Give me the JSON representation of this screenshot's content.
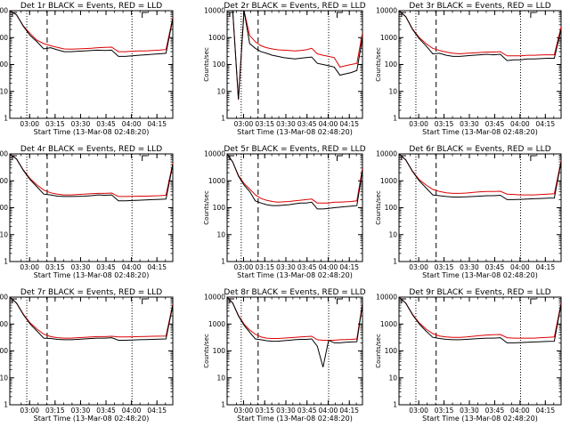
{
  "figure": {
    "x_axis_label": "Start Time (13-Mar-08 02:48:20)"
  },
  "chart_data": [
    {
      "type": "line",
      "title": "Det 1r BLACK = Events, RED = LLD",
      "xlabel": "Start Time (13-Mar-08 02:48:20)",
      "ylabel": "Counts/sec",
      "xtick_labels": [
        "03:00",
        "03:15",
        "03:30",
        "03:45",
        "04:00",
        "04:15"
      ],
      "ytick_labels": [
        "1",
        "10",
        "100",
        "1000",
        "10000"
      ],
      "y_scale": "log",
      "ylim": [
        1,
        10000
      ],
      "grid": false,
      "colors": {
        "events": "#000000",
        "lld": "#dd0000"
      },
      "x_minutes": [
        0,
        4,
        8,
        12,
        16,
        20,
        24,
        28,
        32,
        36,
        40,
        44,
        48,
        52,
        56,
        60,
        64,
        68,
        72,
        76,
        80,
        84,
        88,
        92,
        96
      ],
      "vlines_dotted": [
        10,
        72
      ],
      "vline_dashed": 22,
      "series": [
        {
          "name": "BLACK = Events",
          "color": "#000000",
          "values": [
            10000,
            7000,
            2600,
            1200,
            700,
            380,
            420,
            350,
            300,
            300,
            310,
            320,
            330,
            340,
            330,
            340,
            200,
            200,
            210,
            220,
            230,
            240,
            250,
            260,
            5000
          ]
        },
        {
          "name": "RED = LLD",
          "color": "#dd0000",
          "values": [
            10000,
            7000,
            2700,
            1400,
            800,
            600,
            500,
            430,
            380,
            370,
            380,
            390,
            400,
            420,
            430,
            440,
            300,
            300,
            310,
            320,
            320,
            330,
            340,
            360,
            5500
          ]
        }
      ]
    },
    {
      "type": "line",
      "title": "Det 2r BLACK = Events, RED = LLD",
      "xlabel": "Start Time (13-Mar-08 02:48:20)",
      "ylabel": "Counts/sec",
      "xtick_labels": [
        "03:00",
        "03:15",
        "03:30",
        "03:45",
        "04:00",
        "04:15"
      ],
      "ytick_labels": [
        "1",
        "10",
        "100",
        "1000",
        "10000"
      ],
      "y_scale": "log",
      "ylim": [
        1,
        10000
      ],
      "grid": false,
      "colors": {
        "events": "#000000",
        "lld": "#dd0000"
      },
      "x_minutes": [
        0,
        4,
        8,
        12,
        16,
        20,
        24,
        28,
        32,
        36,
        40,
        44,
        48,
        52,
        56,
        60,
        64,
        68,
        72,
        76,
        80,
        84,
        88,
        92,
        96
      ],
      "vlines_dotted": [
        10,
        72
      ],
      "vline_dashed": 22,
      "series": [
        {
          "name": "BLACK = Events",
          "color": "#000000",
          "values": [
            10000,
            10000,
            5,
            10000,
            600,
            400,
            300,
            260,
            220,
            200,
            180,
            170,
            160,
            170,
            180,
            190,
            110,
            100,
            90,
            80,
            40,
            45,
            50,
            60,
            1000
          ]
        },
        {
          "name": "RED = LLD",
          "color": "#dd0000",
          "values": [
            10000,
            10000,
            5,
            10000,
            1200,
            700,
            500,
            420,
            380,
            350,
            340,
            330,
            320,
            330,
            350,
            400,
            250,
            220,
            200,
            180,
            80,
            90,
            100,
            110,
            1500
          ]
        }
      ]
    },
    {
      "type": "line",
      "title": "Det 3r BLACK = Events, RED = LLD",
      "xlabel": "Start Time (13-Mar-08 02:48:20)",
      "ylabel": "Counts/sec",
      "xtick_labels": [
        "03:00",
        "03:15",
        "03:30",
        "03:45",
        "04:00",
        "04:15"
      ],
      "ytick_labels": [
        "1",
        "10",
        "100",
        "1000",
        "10000"
      ],
      "y_scale": "log",
      "ylim": [
        1,
        10000
      ],
      "grid": false,
      "colors": {
        "events": "#000000",
        "lld": "#dd0000"
      },
      "x_minutes": [
        0,
        4,
        8,
        12,
        16,
        20,
        24,
        28,
        32,
        36,
        40,
        44,
        48,
        52,
        56,
        60,
        64,
        68,
        72,
        76,
        80,
        84,
        88,
        92,
        96
      ],
      "vlines_dotted": [
        10,
        72
      ],
      "vline_dashed": 22,
      "series": [
        {
          "name": "BLACK = Events",
          "color": "#000000",
          "values": [
            10000,
            6000,
            2000,
            900,
            500,
            250,
            260,
            220,
            200,
            200,
            210,
            220,
            230,
            240,
            230,
            240,
            140,
            150,
            150,
            160,
            160,
            165,
            170,
            170,
            2000
          ]
        },
        {
          "name": "RED = LLD",
          "color": "#dd0000",
          "values": [
            10000,
            6000,
            2100,
            1000,
            600,
            400,
            330,
            290,
            260,
            250,
            260,
            270,
            280,
            290,
            290,
            300,
            210,
            210,
            210,
            220,
            220,
            225,
            230,
            230,
            2500
          ]
        }
      ]
    },
    {
      "type": "line",
      "title": "Det 4r BLACK = Events, RED = LLD",
      "xlabel": "Start Time (13-Mar-08 02:48:20)",
      "ylabel": "Counts/sec",
      "xtick_labels": [
        "03:00",
        "03:15",
        "03:30",
        "03:45",
        "04:00",
        "04:15"
      ],
      "ytick_labels": [
        "1",
        "10",
        "100",
        "1000",
        "10000"
      ],
      "y_scale": "log",
      "ylim": [
        1,
        10000
      ],
      "grid": false,
      "colors": {
        "events": "#000000",
        "lld": "#dd0000"
      },
      "x_minutes": [
        0,
        4,
        8,
        12,
        16,
        20,
        24,
        28,
        32,
        36,
        40,
        44,
        48,
        52,
        56,
        60,
        64,
        68,
        72,
        76,
        80,
        84,
        88,
        92,
        96
      ],
      "vlines_dotted": [
        10,
        72
      ],
      "vline_dashed": 22,
      "series": [
        {
          "name": "BLACK = Events",
          "color": "#000000",
          "values": [
            10000,
            6500,
            2400,
            1100,
            600,
            320,
            300,
            270,
            260,
            260,
            265,
            270,
            280,
            300,
            290,
            300,
            180,
            180,
            185,
            190,
            195,
            200,
            205,
            210,
            4000
          ]
        },
        {
          "name": "RED = LLD",
          "color": "#dd0000",
          "values": [
            10000,
            6500,
            2500,
            1200,
            700,
            450,
            360,
            320,
            300,
            300,
            310,
            320,
            330,
            340,
            340,
            350,
            260,
            260,
            265,
            270,
            270,
            275,
            280,
            290,
            4500
          ]
        }
      ]
    },
    {
      "type": "line",
      "title": "Det 5r BLACK = Events, RED = LLD",
      "xlabel": "Start Time (13-Mar-08 02:48:20)",
      "ylabel": "Counts/sec",
      "xtick_labels": [
        "03:00",
        "03:15",
        "03:30",
        "03:45",
        "04:00",
        "04:15"
      ],
      "ytick_labels": [
        "1",
        "10",
        "100",
        "1000",
        "10000"
      ],
      "y_scale": "log",
      "ylim": [
        1,
        10000
      ],
      "grid": false,
      "colors": {
        "events": "#000000",
        "lld": "#dd0000"
      },
      "x_minutes": [
        0,
        4,
        8,
        12,
        16,
        20,
        24,
        28,
        32,
        36,
        40,
        44,
        48,
        52,
        56,
        60,
        64,
        68,
        72,
        76,
        80,
        84,
        88,
        92,
        96
      ],
      "vlines_dotted": [
        10,
        72
      ],
      "vline_dashed": 22,
      "series": [
        {
          "name": "BLACK = Events",
          "color": "#000000",
          "values": [
            10000,
            5000,
            1500,
            700,
            400,
            180,
            150,
            130,
            120,
            120,
            125,
            130,
            140,
            150,
            150,
            160,
            90,
            90,
            95,
            100,
            105,
            110,
            115,
            120,
            2500
          ]
        },
        {
          "name": "RED = LLD",
          "color": "#dd0000",
          "values": [
            10000,
            5000,
            1600,
            800,
            500,
            300,
            220,
            190,
            170,
            160,
            165,
            170,
            180,
            190,
            200,
            210,
            150,
            150,
            150,
            160,
            160,
            165,
            170,
            180,
            3000
          ]
        }
      ]
    },
    {
      "type": "line",
      "title": "Det 6r BLACK = Events, RED = LLD",
      "xlabel": "Start Time (13-Mar-08 02:48:20)",
      "ylabel": "Counts/sec",
      "xtick_labels": [
        "03:00",
        "03:15",
        "03:30",
        "03:45",
        "04:00",
        "04:15"
      ],
      "ytick_labels": [
        "1",
        "10",
        "100",
        "1000",
        "10000"
      ],
      "y_scale": "log",
      "ylim": [
        1,
        10000
      ],
      "grid": false,
      "colors": {
        "events": "#000000",
        "lld": "#dd0000"
      },
      "x_minutes": [
        0,
        4,
        8,
        12,
        16,
        20,
        24,
        28,
        32,
        36,
        40,
        44,
        48,
        52,
        56,
        60,
        64,
        68,
        72,
        76,
        80,
        84,
        88,
        92,
        96
      ],
      "vlines_dotted": [
        10,
        72
      ],
      "vline_dashed": 22,
      "series": [
        {
          "name": "BLACK = Events",
          "color": "#000000",
          "values": [
            10000,
            6000,
            2200,
            1000,
            550,
            300,
            280,
            260,
            250,
            250,
            255,
            260,
            270,
            280,
            280,
            290,
            200,
            200,
            205,
            210,
            215,
            220,
            225,
            230,
            5000
          ]
        },
        {
          "name": "RED = LLD",
          "color": "#dd0000",
          "values": [
            10000,
            6000,
            2300,
            1100,
            700,
            480,
            400,
            360,
            340,
            340,
            350,
            370,
            390,
            400,
            400,
            410,
            320,
            310,
            300,
            300,
            300,
            310,
            320,
            330,
            5500
          ]
        }
      ]
    },
    {
      "type": "line",
      "title": "Det 7r BLACK = Events, RED = LLD",
      "xlabel": "Start Time (13-Mar-08 02:48:20)",
      "ylabel": "Counts/sec",
      "xtick_labels": [
        "03:00",
        "03:15",
        "03:30",
        "03:45",
        "04:00",
        "04:15"
      ],
      "ytick_labels": [
        "1",
        "10",
        "100",
        "1000",
        "10000"
      ],
      "y_scale": "log",
      "ylim": [
        1,
        10000
      ],
      "grid": false,
      "colors": {
        "events": "#000000",
        "lld": "#dd0000"
      },
      "x_minutes": [
        0,
        4,
        8,
        12,
        16,
        20,
        24,
        28,
        32,
        36,
        40,
        44,
        48,
        52,
        56,
        60,
        64,
        68,
        72,
        76,
        80,
        84,
        88,
        92,
        96
      ],
      "vlines_dotted": [
        10,
        72
      ],
      "vline_dashed": 22,
      "series": [
        {
          "name": "BLACK = Events",
          "color": "#000000",
          "values": [
            10000,
            6000,
            2200,
            1000,
            550,
            300,
            290,
            270,
            260,
            260,
            270,
            280,
            290,
            300,
            300,
            310,
            250,
            250,
            255,
            260,
            265,
            270,
            275,
            280,
            5000
          ]
        },
        {
          "name": "RED = LLD",
          "color": "#dd0000",
          "values": [
            10000,
            6000,
            2300,
            1100,
            650,
            420,
            340,
            310,
            300,
            300,
            310,
            320,
            330,
            340,
            340,
            350,
            330,
            330,
            335,
            340,
            345,
            350,
            355,
            360,
            5500
          ]
        }
      ]
    },
    {
      "type": "line",
      "title": "Det 8r BLACK = Events, RED = LLD",
      "xlabel": "Start Time (13-Mar-08 02:48:20)",
      "ylabel": "Counts/sec",
      "xtick_labels": [
        "03:00",
        "03:15",
        "03:30",
        "03:45",
        "04:00",
        "04:15"
      ],
      "ytick_labels": [
        "1",
        "10",
        "100",
        "1000",
        "10000"
      ],
      "y_scale": "log",
      "ylim": [
        1,
        10000
      ],
      "grid": false,
      "colors": {
        "events": "#000000",
        "lld": "#dd0000"
      },
      "x_minutes": [
        0,
        4,
        8,
        12,
        16,
        20,
        24,
        28,
        32,
        36,
        40,
        44,
        48,
        52,
        56,
        60,
        64,
        68,
        72,
        76,
        80,
        84,
        88,
        92,
        96
      ],
      "vlines_dotted": [
        10,
        72
      ],
      "vline_dashed": 22,
      "series": [
        {
          "name": "BLACK = Events",
          "color": "#000000",
          "values": [
            10000,
            6000,
            2000,
            900,
            500,
            280,
            260,
            240,
            230,
            230,
            240,
            250,
            260,
            270,
            270,
            280,
            150,
            25,
            250,
            200,
            200,
            210,
            215,
            220,
            5500
          ]
        },
        {
          "name": "RED = LLD",
          "color": "#dd0000",
          "values": [
            10000,
            6000,
            2100,
            1000,
            600,
            420,
            330,
            300,
            290,
            290,
            300,
            310,
            320,
            330,
            340,
            350,
            260,
            250,
            250,
            250,
            260,
            265,
            270,
            280,
            6000
          ]
        }
      ]
    },
    {
      "type": "line",
      "title": "Det 9r BLACK = Events, RED = LLD",
      "xlabel": "Start Time (13-Mar-08 02:48:20)",
      "ylabel": "Counts/sec",
      "xtick_labels": [
        "03:00",
        "03:15",
        "03:30",
        "03:45",
        "04:00",
        "04:15"
      ],
      "ytick_labels": [
        "1",
        "10",
        "100",
        "1000",
        "10000"
      ],
      "y_scale": "log",
      "ylim": [
        1,
        10000
      ],
      "grid": false,
      "colors": {
        "events": "#000000",
        "lld": "#dd0000"
      },
      "x_minutes": [
        0,
        4,
        8,
        12,
        16,
        20,
        24,
        28,
        32,
        36,
        40,
        44,
        48,
        52,
        56,
        60,
        64,
        68,
        72,
        76,
        80,
        84,
        88,
        92,
        96
      ],
      "vlines_dotted": [
        10,
        72
      ],
      "vline_dashed": 22,
      "series": [
        {
          "name": "BLACK = Events",
          "color": "#000000",
          "values": [
            10000,
            6000,
            2200,
            1000,
            550,
            320,
            290,
            270,
            260,
            260,
            270,
            280,
            290,
            300,
            300,
            310,
            200,
            200,
            205,
            210,
            215,
            220,
            225,
            230,
            5500
          ]
        },
        {
          "name": "RED = LLD",
          "color": "#dd0000",
          "values": [
            10000,
            6000,
            2300,
            1100,
            650,
            440,
            360,
            330,
            320,
            320,
            330,
            350,
            370,
            390,
            400,
            410,
            310,
            300,
            300,
            300,
            300,
            310,
            320,
            330,
            6000
          ]
        }
      ]
    }
  ]
}
